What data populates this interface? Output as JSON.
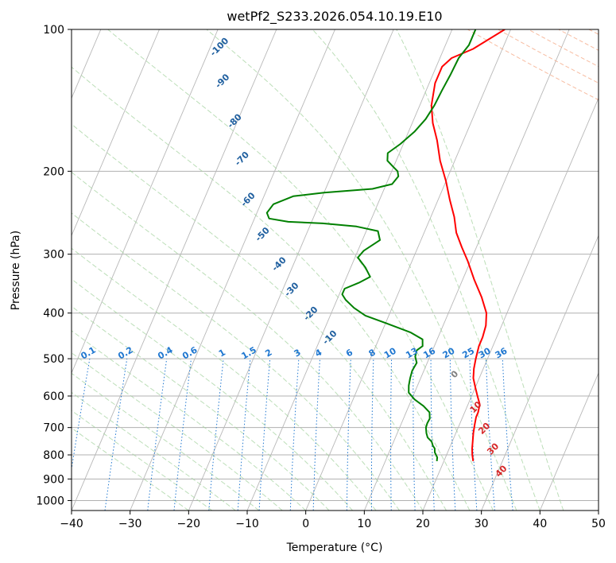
{
  "chart_data": {
    "type": "line",
    "subtype": "skew-t log-p diagram",
    "title": "wetPf2_S233.2026.054.10.19.E10",
    "xlabel": "Temperature (°C)",
    "ylabel": "Pressure (hPa)",
    "xlim": [
      -40,
      50
    ],
    "ylim": [
      1050,
      100
    ],
    "y_scale": "log",
    "grid": true,
    "x_ticks": [
      "−40",
      "−30",
      "−20",
      "−10",
      "0",
      "10",
      "20",
      "30",
      "40",
      "50"
    ],
    "y_ticks": [
      "100",
      "200",
      "300",
      "400",
      "500",
      "600",
      "700",
      "800",
      "900",
      "1000"
    ],
    "series": [
      {
        "color": "#ff0000",
        "points": [
          [
            825,
            25.0
          ],
          [
            800,
            24.4
          ],
          [
            775,
            23.9
          ],
          [
            750,
            23.5
          ],
          [
            720,
            23.0
          ],
          [
            690,
            22.6
          ],
          [
            665,
            22.3
          ],
          [
            650,
            22.3
          ],
          [
            625,
            22.0
          ],
          [
            600,
            21.0
          ],
          [
            575,
            20.0
          ],
          [
            550,
            19.0
          ],
          [
            525,
            18.4
          ],
          [
            500,
            18.0
          ],
          [
            470,
            17.6
          ],
          [
            450,
            17.6
          ],
          [
            425,
            17.3
          ],
          [
            400,
            16.5
          ],
          [
            370,
            14.5
          ],
          [
            340,
            12.0
          ],
          [
            310,
            9.5
          ],
          [
            290,
            7.5
          ],
          [
            270,
            5.5
          ],
          [
            250,
            4.0
          ],
          [
            230,
            2.0
          ],
          [
            210,
            0.0
          ],
          [
            190,
            -2.5
          ],
          [
            172,
            -4.5
          ],
          [
            158,
            -6.5
          ],
          [
            145,
            -8.0
          ],
          [
            130,
            -9.0
          ],
          [
            120,
            -9.0
          ],
          [
            115,
            -8.0
          ],
          [
            110,
            -5.0
          ],
          [
            100,
            -1.0
          ]
        ]
      },
      {
        "color": "#008000",
        "points": [
          [
            825,
            18.8
          ],
          [
            810,
            18.6
          ],
          [
            790,
            17.8
          ],
          [
            775,
            17.5
          ],
          [
            765,
            17.0
          ],
          [
            750,
            16.5
          ],
          [
            735,
            15.5
          ],
          [
            720,
            15.0
          ],
          [
            700,
            14.5
          ],
          [
            685,
            14.4
          ],
          [
            670,
            14.5
          ],
          [
            650,
            14.0
          ],
          [
            630,
            12.5
          ],
          [
            610,
            10.5
          ],
          [
            590,
            9.0
          ],
          [
            570,
            8.5
          ],
          [
            550,
            8.2
          ],
          [
            530,
            8.0
          ],
          [
            510,
            8.2
          ],
          [
            495,
            7.5
          ],
          [
            480,
            7.3
          ],
          [
            470,
            8.0
          ],
          [
            455,
            7.5
          ],
          [
            440,
            5.0
          ],
          [
            420,
            0.0
          ],
          [
            405,
            -4.0
          ],
          [
            390,
            -6.5
          ],
          [
            375,
            -8.5
          ],
          [
            365,
            -9.5
          ],
          [
            355,
            -9.5
          ],
          [
            345,
            -7.5
          ],
          [
            335,
            -6.0
          ],
          [
            320,
            -7.5
          ],
          [
            305,
            -9.5
          ],
          [
            295,
            -9.0
          ],
          [
            280,
            -7.0
          ],
          [
            268,
            -8.0
          ],
          [
            262,
            -12.0
          ],
          [
            258,
            -18.0
          ],
          [
            256,
            -24.0
          ],
          [
            252,
            -27.5
          ],
          [
            245,
            -28.3
          ],
          [
            235,
            -27.8
          ],
          [
            226,
            -25.0
          ],
          [
            222,
            -20.0
          ],
          [
            218,
            -12.0
          ],
          [
            213,
            -9.0
          ],
          [
            205,
            -8.5
          ],
          [
            200,
            -9.0
          ],
          [
            196,
            -10.0
          ],
          [
            190,
            -11.5
          ],
          [
            183,
            -12.0
          ],
          [
            175,
            -10.5
          ],
          [
            165,
            -9.0
          ],
          [
            155,
            -8.0
          ],
          [
            145,
            -7.5
          ],
          [
            135,
            -7.3
          ],
          [
            125,
            -7.0
          ],
          [
            115,
            -6.8
          ],
          [
            108,
            -6.0
          ],
          [
            100,
            -6.0
          ]
        ]
      }
    ],
    "dry_adiabat_labels": [
      "-100",
      "-90",
      "-80",
      "-70",
      "-60",
      "-50",
      "-40",
      "-30",
      "-20",
      "-10"
    ],
    "moist_adiabat_label": "0",
    "moist_adiabat_labels_red": [
      "10",
      "20",
      "30",
      "40"
    ],
    "mixing_ratio_labels": [
      "0.1",
      "0.2",
      "0.4",
      "0.6",
      "1",
      "1.5",
      "2",
      "3",
      "4",
      "6",
      "8",
      "10",
      "13",
      "16",
      "20",
      "25",
      "30",
      "36"
    ],
    "colors": {
      "temperature": "#ff0000",
      "dewpoint": "#008000",
      "dry_adiabat": "#f4a582",
      "moist_adiabat": "#a6d3a0",
      "mixing_ratio": "#1f77d0",
      "isotherm": "#7f7f7f",
      "adiabat_label": "#1f5f9f",
      "moist_label_red": "#d62728"
    }
  }
}
